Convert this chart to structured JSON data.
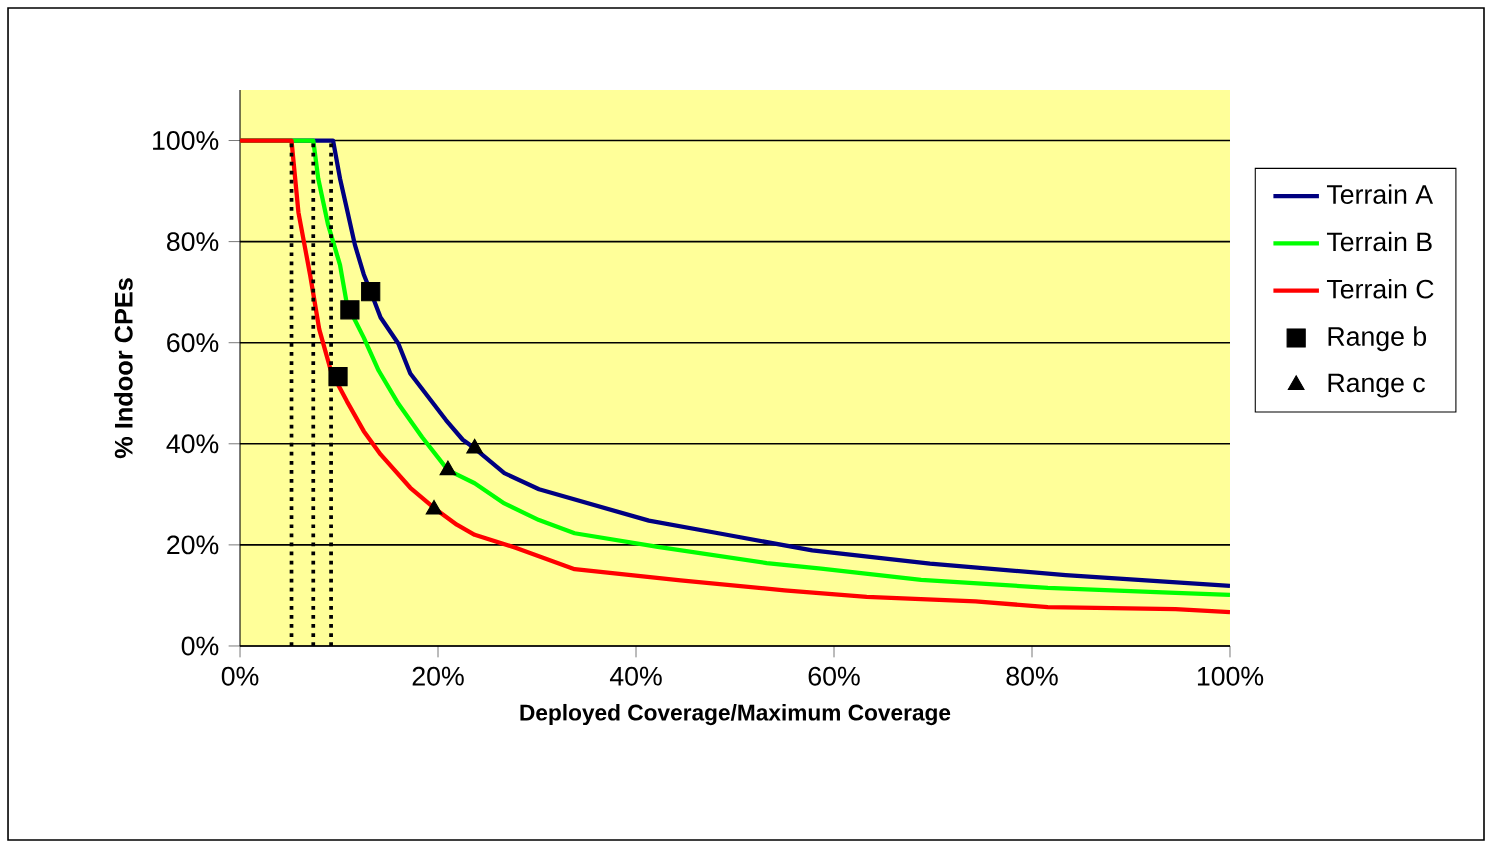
{
  "chart_data": {
    "type": "line",
    "xlabel": "Deployed Coverage/Maximum Coverage",
    "ylabel": "% Indoor CPEs",
    "xlim": [
      0,
      100
    ],
    "ylim": [
      0,
      110
    ],
    "xticks": [
      {
        "value": 0,
        "label": "0%"
      },
      {
        "value": 20,
        "label": "20%"
      },
      {
        "value": 40,
        "label": "40%"
      },
      {
        "value": 60,
        "label": "60%"
      },
      {
        "value": 80,
        "label": "80%"
      },
      {
        "value": 100,
        "label": "100%"
      }
    ],
    "yticks": [
      {
        "value": 0,
        "label": "0%"
      },
      {
        "value": 20,
        "label": "20%"
      },
      {
        "value": 40,
        "label": "40%"
      },
      {
        "value": 60,
        "label": "60%"
      },
      {
        "value": 80,
        "label": "80%"
      },
      {
        "value": 100,
        "label": "100%"
      }
    ],
    "grid": "y",
    "legend": "right",
    "series": [
      {
        "name": "Terrain A",
        "color": "#000080",
        "x": [
          0,
          9.4,
          10.1,
          10.7,
          11.6,
          12.5,
          13.3,
          14.2,
          16.0,
          17.2,
          19.0,
          20.8,
          22.5,
          23.7,
          26.7,
          30.2,
          41.3,
          48.6,
          57.8,
          69.7,
          83.4,
          100
        ],
        "values": [
          100,
          100,
          92.5,
          87.3,
          79.4,
          73.5,
          69.6,
          65.0,
          59.8,
          53.9,
          49.3,
          44.7,
          40.8,
          39.1,
          34.2,
          31.0,
          24.8,
          22.2,
          18.9,
          16.3,
          14.0,
          11.9
        ]
      },
      {
        "name": "Terrain B",
        "color": "#00ff00",
        "x": [
          0,
          7.4,
          7.9,
          8.9,
          10.1,
          10.8,
          12.5,
          14.0,
          16.0,
          18.4,
          21.0,
          23.7,
          26.7,
          30.2,
          33.8,
          42.2,
          53.2,
          58.7,
          68.8,
          81.6,
          94.5,
          100
        ],
        "values": [
          100,
          100,
          92.5,
          83.3,
          75.4,
          67.6,
          61.0,
          54.5,
          47.9,
          41.3,
          34.8,
          32.2,
          28.2,
          24.9,
          22.3,
          19.6,
          16.4,
          15.3,
          13.1,
          11.5,
          10.5,
          10.1
        ]
      },
      {
        "name": "Terrain C",
        "color": "#ff0000",
        "x": [
          0,
          5.2,
          5.9,
          7.1,
          8.0,
          9.2,
          10.8,
          12.5,
          14.2,
          17.2,
          19.6,
          21.9,
          23.7,
          27.9,
          33.8,
          44.5,
          55.0,
          63.3,
          74.3,
          81.6,
          94.5,
          100
        ],
        "values": [
          100,
          100,
          85.8,
          73.2,
          62.7,
          54.3,
          48.4,
          42.5,
          37.9,
          31.3,
          27.3,
          24.0,
          22.0,
          19.4,
          15.2,
          13.0,
          11.0,
          9.7,
          8.8,
          7.7,
          7.3,
          6.7
        ]
      },
      {
        "name": "Range b",
        "type": "scatter",
        "marker": "square",
        "color": "#000000",
        "x": [
          13.2,
          11.1,
          9.9
        ],
        "values": [
          70.1,
          66.5,
          53.3
        ]
      },
      {
        "name": "Range c",
        "type": "scatter",
        "marker": "triangle",
        "color": "#000000",
        "x": [
          23.7,
          21.0,
          19.6
        ],
        "values": [
          39.1,
          34.8,
          27.0
        ]
      }
    ],
    "ref_lines": [
      {
        "axis": "x",
        "value": 5.2,
        "color": "#000000",
        "line_style": "dotted"
      },
      {
        "axis": "x",
        "value": 7.4,
        "color": "#000000",
        "line_style": "dotted"
      },
      {
        "axis": "x",
        "value": 9.2,
        "color": "#000000",
        "line_style": "dotted"
      }
    ]
  }
}
